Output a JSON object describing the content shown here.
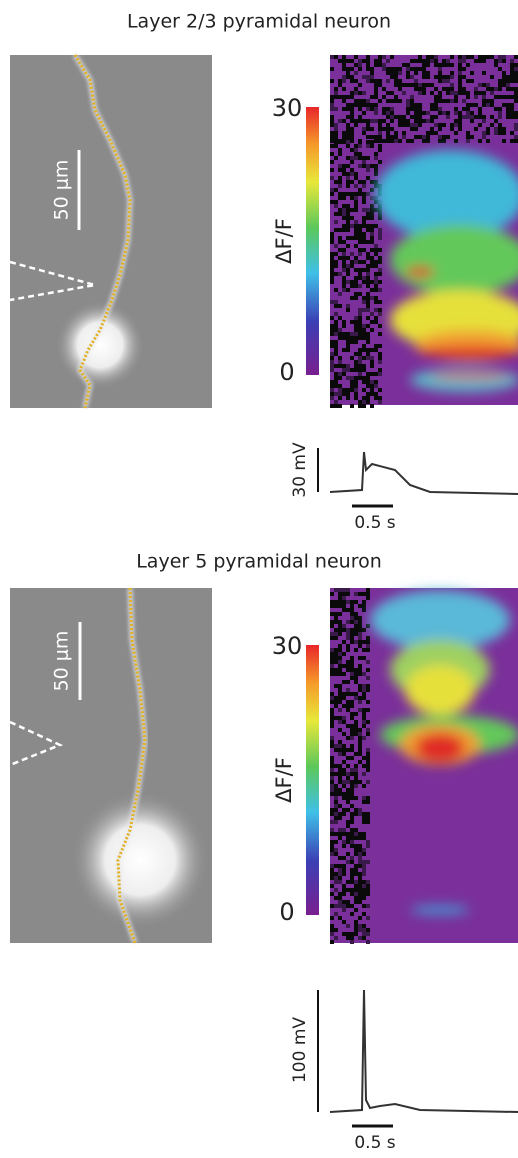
{
  "panels": [
    {
      "title": "Layer 2/3 pyramidal neuron",
      "scale_bar": "50 μm",
      "colorbar": {
        "max": "30",
        "min": "0",
        "label": "ΔF/F"
      },
      "voltage_scale": "30 mV",
      "time_scale": "0.5 s"
    },
    {
      "title": "Layer 5 pyramidal neuron",
      "scale_bar": "50 μm",
      "colorbar": {
        "max": "30",
        "min": "0",
        "label": "ΔF/F"
      },
      "voltage_scale": "100 mV",
      "time_scale": "0.5 s"
    }
  ]
}
